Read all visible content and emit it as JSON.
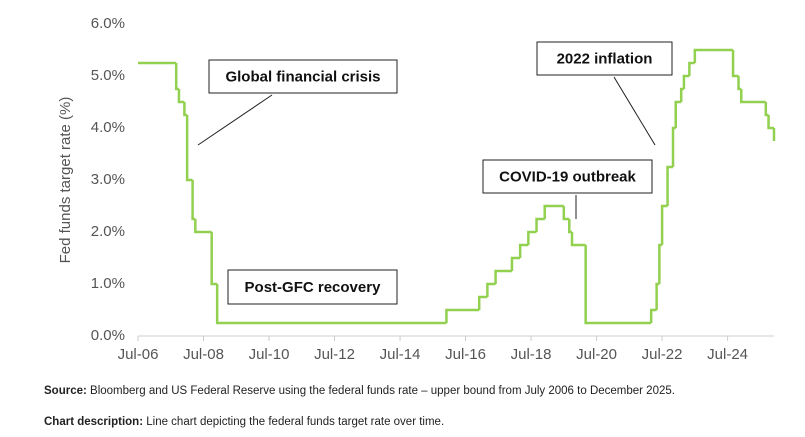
{
  "chart_data": {
    "type": "step-line",
    "ylabel": "Fed funds target rate (%)",
    "x": [
      "2006-07",
      "2007-09",
      "2007-10",
      "2007-12",
      "2008-01",
      "2008-03",
      "2008-04",
      "2008-10",
      "2008-12",
      "2015-12",
      "2016-12",
      "2017-03",
      "2017-06",
      "2017-12",
      "2018-03",
      "2018-06",
      "2018-09",
      "2018-12",
      "2019-07",
      "2019-09",
      "2019-10",
      "2020-03",
      "2022-03",
      "2022-05",
      "2022-06",
      "2022-07",
      "2022-09",
      "2022-11",
      "2022-12",
      "2023-02",
      "2023-03",
      "2023-05",
      "2023-07",
      "2024-09",
      "2024-11",
      "2024-12",
      "2025-09",
      "2025-10",
      "2025-12"
    ],
    "series": [
      {
        "name": "Fed funds target rate",
        "color": "#92d050",
        "values": [
          5.25,
          4.75,
          4.5,
          4.25,
          3.0,
          2.25,
          2.0,
          1.0,
          0.25,
          0.5,
          0.75,
          1.0,
          1.25,
          1.5,
          1.75,
          2.0,
          2.25,
          2.5,
          2.25,
          2.0,
          1.75,
          0.25,
          0.5,
          1.0,
          1.75,
          2.5,
          3.25,
          4.0,
          4.5,
          4.75,
          5.0,
          5.25,
          5.5,
          5.0,
          4.75,
          4.5,
          4.25,
          4.0,
          3.75
        ]
      }
    ],
    "xlim": [
      "2006-07",
      "2025-12"
    ],
    "xticks": [
      {
        "value": "2006-07",
        "label": "Jul-06"
      },
      {
        "value": "2008-07",
        "label": "Jul-08"
      },
      {
        "value": "2010-07",
        "label": "Jul-10"
      },
      {
        "value": "2012-07",
        "label": "Jul-12"
      },
      {
        "value": "2014-07",
        "label": "Jul-14"
      },
      {
        "value": "2016-07",
        "label": "Jul-16"
      },
      {
        "value": "2018-07",
        "label": "Jul-18"
      },
      {
        "value": "2020-07",
        "label": "Jul-20"
      },
      {
        "value": "2022-07",
        "label": "Jul-22"
      },
      {
        "value": "2024-07",
        "label": "Jul-24"
      }
    ],
    "ylim": [
      0,
      6
    ],
    "yticks": [
      {
        "value": 0,
        "label": "0.0%"
      },
      {
        "value": 1,
        "label": "1.0%"
      },
      {
        "value": 2,
        "label": "2.0%"
      },
      {
        "value": 3,
        "label": "3.0%"
      },
      {
        "value": 4,
        "label": "4.0%"
      },
      {
        "value": 5,
        "label": "5.0%"
      },
      {
        "value": 6,
        "label": "6.0%"
      }
    ],
    "grid": false,
    "annotations": [
      {
        "text": "Global financial crisis"
      },
      {
        "text": "Post-GFC recovery"
      },
      {
        "text": "COVID-19 outbreak"
      },
      {
        "text": "2022 inflation"
      }
    ]
  },
  "notes": [
    {
      "label": "Source:",
      "text": "Bloomberg and US Federal Reserve using the federal funds rate – upper bound from July 2006 to December 2025."
    },
    {
      "label": "Chart description:",
      "text": "Line chart depicting the federal funds target rate over time."
    }
  ]
}
